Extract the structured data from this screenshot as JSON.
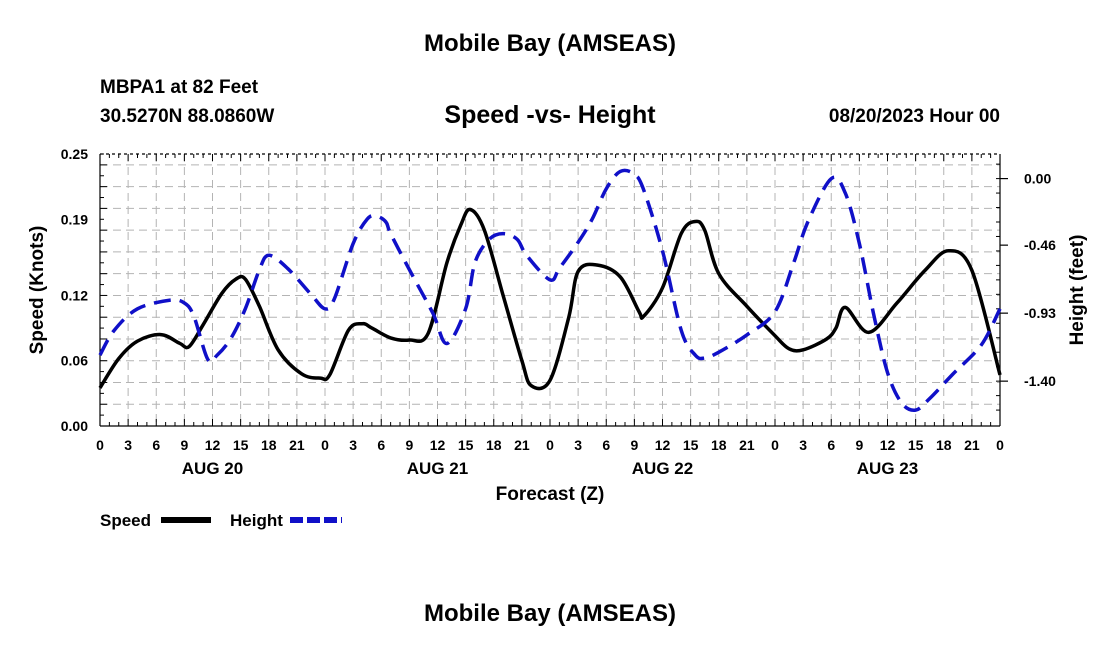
{
  "header": {
    "title": "Mobile Bay (AMSEAS)",
    "station": "MBPA1 at 82 Feet",
    "coords": "30.5270N  88.0860W",
    "subtitle": "Speed -vs- Height",
    "run_time": "08/20/2023 Hour 00"
  },
  "footer": {
    "repeat_title": "Mobile Bay (AMSEAS)"
  },
  "chart_data": {
    "type": "line",
    "xlabel": "Forecast (Z)",
    "ylabel_left": "Speed (Knots)",
    "ylabel_right": "Height (feet)",
    "x_range": [
      0,
      96
    ],
    "ylim_left": [
      0,
      0.25
    ],
    "ylim_right": [
      -1.71,
      0.17
    ],
    "grid": true,
    "x_tick_hours": [
      0,
      3,
      6,
      9,
      12,
      15,
      18,
      21,
      24,
      27,
      30,
      33,
      36,
      39,
      42,
      45,
      48,
      51,
      54,
      57,
      60,
      63,
      66,
      69,
      72,
      75,
      78,
      81,
      84,
      87,
      90,
      93,
      96
    ],
    "x_tick_labels": [
      "0",
      "3",
      "6",
      "9",
      "12",
      "15",
      "18",
      "21",
      "0",
      "3",
      "6",
      "9",
      "12",
      "15",
      "18",
      "21",
      "0",
      "3",
      "6",
      "9",
      "12",
      "15",
      "18",
      "21",
      "0",
      "3",
      "6",
      "9",
      "12",
      "15",
      "18",
      "21",
      "0"
    ],
    "day_labels": [
      {
        "hour": 12,
        "label": "AUG 20"
      },
      {
        "hour": 36,
        "label": "AUG 21"
      },
      {
        "hour": 60,
        "label": "AUG 22"
      },
      {
        "hour": 84,
        "label": "AUG 23"
      }
    ],
    "left_ticks": [
      0.0,
      0.06,
      0.12,
      0.19,
      0.25
    ],
    "left_tick_labels": [
      "0.00",
      "0.06",
      "0.12",
      "0.19",
      "0.25"
    ],
    "right_ticks": [
      0.0,
      -0.46,
      -0.93,
      -1.4
    ],
    "right_tick_labels": [
      "0.00",
      "-0.46",
      "-0.93",
      "-1.40"
    ],
    "legend": [
      {
        "name": "Speed",
        "color": "#000000",
        "style": "solid"
      },
      {
        "name": "Height",
        "color": "#1010c8",
        "style": "dashed"
      }
    ],
    "series": [
      {
        "name": "Speed",
        "axis": "left",
        "color": "#000000",
        "x": [
          0,
          2,
          4,
          6.5,
          8.5,
          9.5,
          11,
          13,
          14.5,
          15.5,
          17,
          19,
          21.5,
          23.5,
          24.5,
          26.5,
          28,
          29,
          31,
          33,
          35,
          37,
          38.5,
          39.5,
          41,
          43,
          45,
          46,
          48,
          50,
          51,
          53,
          55.5,
          57.5,
          58,
          60,
          62,
          63.5,
          64.5,
          66,
          69,
          72,
          73.5,
          75,
          77.5,
          78.5,
          79.5,
          82,
          85,
          88,
          90.5,
          93,
          96
        ],
        "values": [
          0.035,
          0.062,
          0.078,
          0.084,
          0.076,
          0.073,
          0.093,
          0.122,
          0.135,
          0.135,
          0.11,
          0.07,
          0.048,
          0.044,
          0.047,
          0.088,
          0.094,
          0.09,
          0.081,
          0.079,
          0.085,
          0.15,
          0.185,
          0.199,
          0.18,
          0.12,
          0.06,
          0.037,
          0.042,
          0.1,
          0.142,
          0.148,
          0.137,
          0.105,
          0.101,
          0.127,
          0.177,
          0.188,
          0.18,
          0.14,
          0.11,
          0.083,
          0.071,
          0.07,
          0.08,
          0.09,
          0.109,
          0.086,
          0.113,
          0.143,
          0.161,
          0.143,
          0.047
        ]
      },
      {
        "name": "Height",
        "axis": "right",
        "color": "#1010c8",
        "x": [
          0,
          1.5,
          4,
          7.5,
          9,
          10,
          11.5,
          12.5,
          14,
          15.5,
          17,
          18,
          20,
          22.5,
          24,
          25,
          27,
          28.5,
          29.5,
          30.5,
          31,
          33,
          35.5,
          37,
          39,
          40,
          41.5,
          43,
          44.5,
          45.5,
          48,
          49,
          51,
          52.5,
          54,
          55.5,
          57,
          58,
          60,
          62,
          63.5,
          64.5,
          66,
          69,
          72,
          74,
          75.5,
          78,
          79.5,
          81,
          82.5,
          84,
          85.5,
          87,
          88.5,
          91,
          94,
          96
        ],
        "values": [
          -1.22,
          -1.05,
          -0.9,
          -0.84,
          -0.86,
          -0.95,
          -1.25,
          -1.22,
          -1.1,
          -0.9,
          -0.63,
          -0.53,
          -0.62,
          -0.8,
          -0.9,
          -0.83,
          -0.45,
          -0.28,
          -0.26,
          -0.3,
          -0.38,
          -0.63,
          -0.93,
          -1.14,
          -0.9,
          -0.58,
          -0.42,
          -0.38,
          -0.42,
          -0.53,
          -0.7,
          -0.62,
          -0.44,
          -0.28,
          -0.07,
          0.05,
          0.03,
          -0.08,
          -0.5,
          -1.05,
          -1.22,
          -1.24,
          -1.2,
          -1.08,
          -0.92,
          -0.58,
          -0.3,
          0.0,
          -0.1,
          -0.45,
          -0.93,
          -1.34,
          -1.55,
          -1.6,
          -1.52,
          -1.35,
          -1.15,
          -0.9
        ]
      }
    ]
  }
}
